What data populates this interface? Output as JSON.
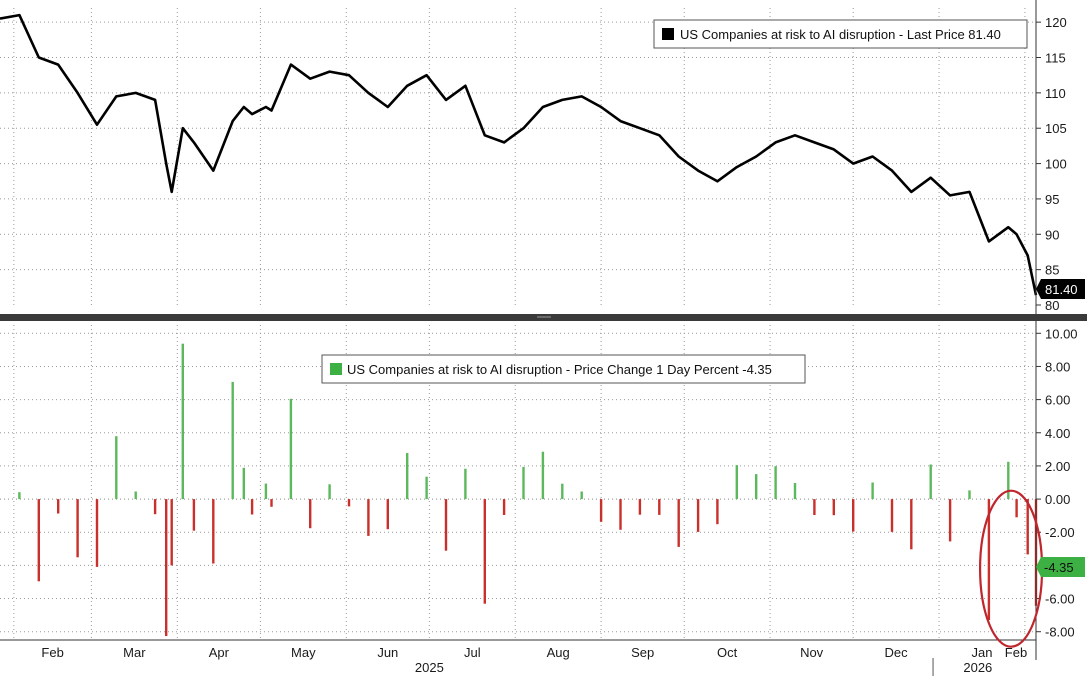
{
  "chart_data": [
    {
      "type": "line",
      "legend": "US Companies at risk to AI disruption - Last Price 81.40",
      "legend_color": "#000000",
      "series_color": "#000000",
      "last_value_label": "81.40",
      "ylim": [
        80,
        122
      ],
      "y_ticks": [
        80,
        85,
        90,
        95,
        100,
        105,
        110,
        115,
        120
      ],
      "y_tick_labels": [
        "80",
        "85",
        "90",
        "95",
        "100",
        "105",
        "110",
        "115",
        "120"
      ],
      "grid": true,
      "x": [
        0,
        7,
        14,
        21,
        28,
        35,
        42,
        49,
        56,
        60,
        62,
        66,
        70,
        77,
        84,
        88,
        91,
        96,
        98,
        105,
        112,
        119,
        126,
        133,
        140,
        147,
        154,
        161,
        168,
        175,
        182,
        189,
        196,
        203,
        210,
        217,
        224,
        231,
        238,
        245,
        252,
        259,
        266,
        273,
        280,
        287,
        294,
        301,
        308,
        315,
        322,
        329,
        336,
        343,
        350,
        357,
        364,
        367,
        371,
        374
      ],
      "values": [
        120.5,
        121,
        115,
        114,
        110,
        105.5,
        109.5,
        110,
        109,
        100,
        96,
        105,
        103,
        99,
        106,
        108,
        107,
        108,
        107.5,
        114,
        112,
        113,
        112.5,
        110,
        108,
        111,
        112.5,
        109,
        111,
        104,
        103,
        105,
        108,
        109,
        109.5,
        108,
        106,
        105,
        104,
        101,
        99,
        97.5,
        99.5,
        101,
        103,
        104,
        103,
        102,
        100,
        101,
        99,
        96,
        98,
        95.5,
        96,
        89,
        91,
        90,
        87,
        81.4
      ]
    },
    {
      "type": "bar",
      "legend": "US Companies at risk to AI disruption - Price Change 1 Day Percent -4.35",
      "legend_color": "#3cb043",
      "positive_color": "#5cb85c",
      "negative_color": "#c9302c",
      "last_value_label": "-4.35",
      "ylim": [
        -8.5,
        10.5
      ],
      "y_ticks": [
        -8,
        -6,
        -4,
        -2,
        0,
        2,
        4,
        6,
        8,
        10
      ],
      "y_tick_labels": [
        "-8.00",
        "-6.00",
        "-4.00",
        "-2.00",
        "0.00",
        "2.00",
        "4.00",
        "6.00",
        "8.00",
        "10.00"
      ],
      "grid": true,
      "annotation": "red ellipse around late Jan - early Feb 2026 bars"
    }
  ],
  "x_axis": {
    "start": "2025-01-27",
    "end": "2026-02-05",
    "months": [
      {
        "label": "Feb",
        "date": "2025-02-01"
      },
      {
        "label": "Mar",
        "date": "2025-03-01"
      },
      {
        "label": "Apr",
        "date": "2025-04-01"
      },
      {
        "label": "May",
        "date": "2025-05-01"
      },
      {
        "label": "Jun",
        "date": "2025-06-01"
      },
      {
        "label": "Jul",
        "date": "2025-07-01"
      },
      {
        "label": "Aug",
        "date": "2025-08-01"
      },
      {
        "label": "Sep",
        "date": "2025-09-01"
      },
      {
        "label": "Oct",
        "date": "2025-10-01"
      },
      {
        "label": "Nov",
        "date": "2025-11-01"
      },
      {
        "label": "Dec",
        "date": "2025-12-01"
      },
      {
        "label": "Jan",
        "date": "2026-01-01"
      },
      {
        "label": "Feb",
        "date": "2026-02-01"
      }
    ],
    "years": [
      {
        "label": "2025",
        "date": "2025-07-01"
      },
      {
        "label": "2026",
        "date": "2026-01-15"
      }
    ]
  }
}
